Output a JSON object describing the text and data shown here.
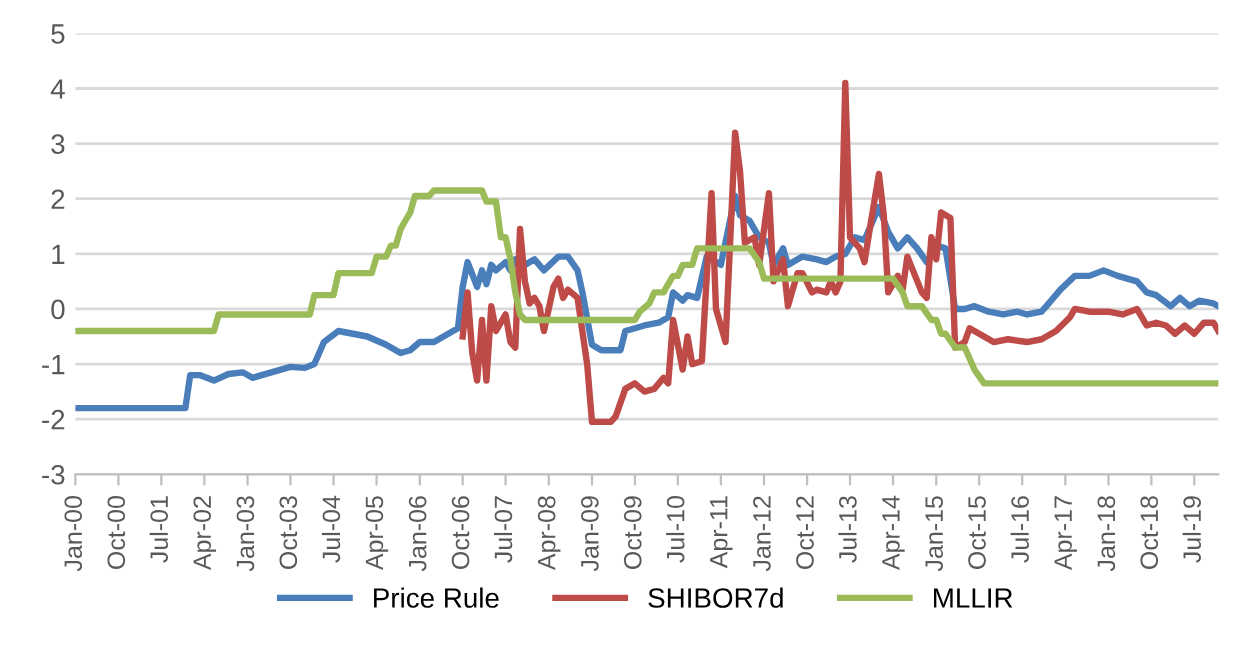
{
  "chart_data": {
    "type": "line",
    "xlim": [
      "2000-01",
      "2019-12"
    ],
    "xticks": [
      {
        "value": "2000-01",
        "label": "Jan-00"
      },
      {
        "value": "2000-10",
        "label": "Oct-00"
      },
      {
        "value": "2001-07",
        "label": "Jul-01"
      },
      {
        "value": "2002-04",
        "label": "Apr-02"
      },
      {
        "value": "2003-01",
        "label": "Jan-03"
      },
      {
        "value": "2003-10",
        "label": "Oct-03"
      },
      {
        "value": "2004-07",
        "label": "Jul-04"
      },
      {
        "value": "2005-04",
        "label": "Apr-05"
      },
      {
        "value": "2006-01",
        "label": "Jan-06"
      },
      {
        "value": "2006-10",
        "label": "Oct-06"
      },
      {
        "value": "2007-07",
        "label": "Jul-07"
      },
      {
        "value": "2008-04",
        "label": "Apr-08"
      },
      {
        "value": "2009-01",
        "label": "Jan-09"
      },
      {
        "value": "2009-10",
        "label": "Oct-09"
      },
      {
        "value": "2010-07",
        "label": "Jul-10"
      },
      {
        "value": "2011-04",
        "label": "Apr-11"
      },
      {
        "value": "2012-01",
        "label": "Jan-12"
      },
      {
        "value": "2012-10",
        "label": "Oct-12"
      },
      {
        "value": "2013-07",
        "label": "Jul-13"
      },
      {
        "value": "2014-04",
        "label": "Apr-14"
      },
      {
        "value": "2015-01",
        "label": "Jan-15"
      },
      {
        "value": "2015-10",
        "label": "Oct-15"
      },
      {
        "value": "2016-07",
        "label": "Jul-16"
      },
      {
        "value": "2017-04",
        "label": "Apr-17"
      },
      {
        "value": "2018-01",
        "label": "Jan-18"
      },
      {
        "value": "2018-10",
        "label": "Oct-18"
      },
      {
        "value": "2019-07",
        "label": "Jul-19"
      }
    ],
    "ylim": [
      -3,
      5
    ],
    "yticks": [
      -3,
      -2,
      -1,
      0,
      1,
      2,
      3,
      4,
      5
    ],
    "grid": "y",
    "legend": "bottom",
    "series": [
      {
        "name": "Price Rule",
        "color": "#4a7ebb",
        "x": [
          "2000-01",
          "2001-12",
          "2002-01",
          "2002-03",
          "2002-06",
          "2002-09",
          "2002-12",
          "2003-02",
          "2003-06",
          "2003-10",
          "2004-01",
          "2004-03",
          "2004-05",
          "2004-08",
          "2004-11",
          "2005-02",
          "2005-06",
          "2005-09",
          "2005-11",
          "2006-01",
          "2006-04",
          "2006-06",
          "2006-08",
          "2006-09",
          "2006-10",
          "2006-11",
          "2007-01",
          "2007-02",
          "2007-03",
          "2007-04",
          "2007-05",
          "2007-07",
          "2007-08",
          "2007-09",
          "2007-11",
          "2008-01",
          "2008-03",
          "2008-06",
          "2008-08",
          "2008-10",
          "2008-11",
          "2009-01",
          "2009-03",
          "2009-07",
          "2009-08",
          "2009-12",
          "2010-03",
          "2010-05",
          "2010-06",
          "2010-08",
          "2010-09",
          "2010-11",
          "2011-01",
          "2011-04",
          "2011-07",
          "2011-08",
          "2011-10",
          "2011-12",
          "2012-02",
          "2012-03",
          "2012-05",
          "2012-06",
          "2012-09",
          "2012-12",
          "2013-02",
          "2013-04",
          "2013-06",
          "2013-08",
          "2013-10",
          "2014-01",
          "2014-03",
          "2014-05",
          "2014-07",
          "2014-09",
          "2014-11",
          "2015-01",
          "2015-03",
          "2015-05",
          "2015-07",
          "2015-09",
          "2015-12",
          "2016-03",
          "2016-06",
          "2016-08",
          "2016-11",
          "2017-01",
          "2017-03",
          "2017-06",
          "2017-09",
          "2017-12",
          "2018-03",
          "2018-07",
          "2018-09",
          "2018-11",
          "2019-02",
          "2019-04",
          "2019-06",
          "2019-08",
          "2019-11",
          "2019-12"
        ],
        "values": [
          -1.8,
          -1.8,
          -1.2,
          -1.2,
          -1.3,
          -1.18,
          -1.15,
          -1.25,
          -1.15,
          -1.05,
          -1.07,
          -1.0,
          -0.6,
          -0.4,
          -0.45,
          -0.5,
          -0.65,
          -0.8,
          -0.75,
          -0.6,
          -0.6,
          -0.5,
          -0.4,
          -0.35,
          0.4,
          0.85,
          0.4,
          0.7,
          0.45,
          0.8,
          0.7,
          0.85,
          0.7,
          0.9,
          0.8,
          0.9,
          0.7,
          0.95,
          0.95,
          0.7,
          0.3,
          -0.65,
          -0.75,
          -0.75,
          -0.4,
          -0.3,
          -0.25,
          -0.15,
          0.3,
          0.15,
          0.25,
          0.2,
          0.95,
          0.8,
          2.05,
          1.7,
          1.6,
          1.3,
          1.2,
          0.8,
          1.1,
          0.8,
          0.95,
          0.9,
          0.85,
          0.95,
          1.0,
          1.3,
          1.25,
          1.85,
          1.4,
          1.1,
          1.3,
          1.1,
          0.85,
          1.15,
          1.1,
          0.0,
          0.0,
          0.05,
          -0.05,
          -0.1,
          -0.05,
          -0.1,
          -0.05,
          0.15,
          0.35,
          0.6,
          0.6,
          0.7,
          0.6,
          0.5,
          0.3,
          0.25,
          0.05,
          0.2,
          0.05,
          0.15,
          0.1,
          0.05
        ]
      },
      {
        "name": "SHIBOR7d",
        "color": "#be4b48",
        "x": [
          "2006-10",
          "2006-11",
          "2006-12",
          "2007-01",
          "2007-02",
          "2007-03",
          "2007-04",
          "2007-05",
          "2007-07",
          "2007-08",
          "2007-09",
          "2007-10",
          "2007-11",
          "2007-12",
          "2008-01",
          "2008-02",
          "2008-03",
          "2008-05",
          "2008-06",
          "2008-07",
          "2008-08",
          "2008-10",
          "2008-12",
          "2009-01",
          "2009-05",
          "2009-06",
          "2009-08",
          "2009-10",
          "2009-12",
          "2010-02",
          "2010-04",
          "2010-05",
          "2010-06",
          "2010-08",
          "2010-09",
          "2010-10",
          "2010-12",
          "2011-02",
          "2011-03",
          "2011-05",
          "2011-07",
          "2011-08",
          "2011-09",
          "2011-11",
          "2011-12",
          "2012-02",
          "2012-03",
          "2012-05",
          "2012-06",
          "2012-08",
          "2012-09",
          "2012-11",
          "2012-12",
          "2013-02",
          "2013-03",
          "2013-04",
          "2013-05",
          "2013-06",
          "2013-07",
          "2013-09",
          "2013-10",
          "2013-11",
          "2014-01",
          "2014-02",
          "2014-03",
          "2014-05",
          "2014-06",
          "2014-07",
          "2014-10",
          "2014-11",
          "2014-12",
          "2015-01",
          "2015-02",
          "2015-04",
          "2015-05",
          "2015-07",
          "2015-08",
          "2015-11",
          "2016-01",
          "2016-04",
          "2016-08",
          "2016-11",
          "2017-02",
          "2017-05",
          "2017-06",
          "2017-09",
          "2018-01",
          "2018-04",
          "2018-07",
          "2018-09",
          "2018-11",
          "2019-01",
          "2019-03",
          "2019-05",
          "2019-07",
          "2019-09",
          "2019-11",
          "2019-12"
        ],
        "values": [
          -0.5,
          0.3,
          -0.8,
          -1.3,
          -0.2,
          -1.3,
          0.05,
          -0.4,
          -0.1,
          -0.6,
          -0.7,
          1.45,
          0.5,
          0.1,
          0.2,
          0.05,
          -0.4,
          0.4,
          0.55,
          0.2,
          0.35,
          0.2,
          -1.0,
          -2.05,
          -2.05,
          -1.95,
          -1.45,
          -1.35,
          -1.5,
          -1.45,
          -1.25,
          -1.35,
          -0.2,
          -1.1,
          -0.5,
          -1.0,
          -0.95,
          2.1,
          0.0,
          -0.6,
          3.2,
          2.5,
          1.2,
          1.3,
          0.8,
          2.1,
          0.5,
          0.9,
          0.05,
          0.65,
          0.65,
          0.3,
          0.35,
          0.3,
          0.5,
          0.3,
          0.5,
          4.1,
          1.3,
          1.1,
          0.85,
          1.4,
          2.45,
          1.7,
          0.3,
          0.6,
          0.35,
          0.95,
          0.3,
          0.2,
          1.3,
          0.9,
          1.75,
          1.65,
          -0.7,
          -0.6,
          -0.35,
          -0.5,
          -0.6,
          -0.55,
          -0.6,
          -0.55,
          -0.4,
          -0.15,
          0.0,
          -0.05,
          -0.05,
          -0.1,
          0.0,
          -0.3,
          -0.25,
          -0.3,
          -0.45,
          -0.3,
          -0.45,
          -0.25,
          -0.25,
          -0.4
        ]
      },
      {
        "name": "MLLIR",
        "color": "#9bbb59",
        "x": [
          "2000-01",
          "2002-06",
          "2002-07",
          "2004-02",
          "2004-03",
          "2004-07",
          "2004-08",
          "2005-03",
          "2005-04",
          "2005-06",
          "2005-07",
          "2005-08",
          "2005-09",
          "2005-10",
          "2005-11",
          "2005-12",
          "2006-03",
          "2006-04",
          "2007-02",
          "2007-03",
          "2007-05",
          "2007-06",
          "2007-07",
          "2007-08",
          "2007-09",
          "2007-10",
          "2007-11",
          "2009-10",
          "2009-11",
          "2010-01",
          "2010-02",
          "2010-04",
          "2010-05",
          "2010-06",
          "2010-07",
          "2010-08",
          "2010-10",
          "2010-11",
          "2011-10",
          "2011-12",
          "2012-01",
          "2014-04",
          "2014-06",
          "2014-07",
          "2014-10",
          "2014-12",
          "2015-01",
          "2015-02",
          "2015-03",
          "2015-05",
          "2015-07",
          "2015-09",
          "2015-11",
          "2019-12"
        ],
        "values": [
          -0.4,
          -0.4,
          -0.1,
          -0.1,
          0.25,
          0.25,
          0.65,
          0.65,
          0.95,
          0.95,
          1.15,
          1.15,
          1.45,
          1.6,
          1.75,
          2.05,
          2.05,
          2.15,
          2.15,
          1.95,
          1.95,
          1.3,
          1.3,
          0.9,
          0.3,
          -0.1,
          -0.2,
          -0.2,
          -0.05,
          0.1,
          0.3,
          0.3,
          0.45,
          0.6,
          0.6,
          0.8,
          0.8,
          1.1,
          1.1,
          0.85,
          0.55,
          0.55,
          0.3,
          0.05,
          0.05,
          -0.2,
          -0.2,
          -0.45,
          -0.45,
          -0.7,
          -0.7,
          -1.1,
          -1.35,
          -1.35
        ]
      }
    ]
  }
}
